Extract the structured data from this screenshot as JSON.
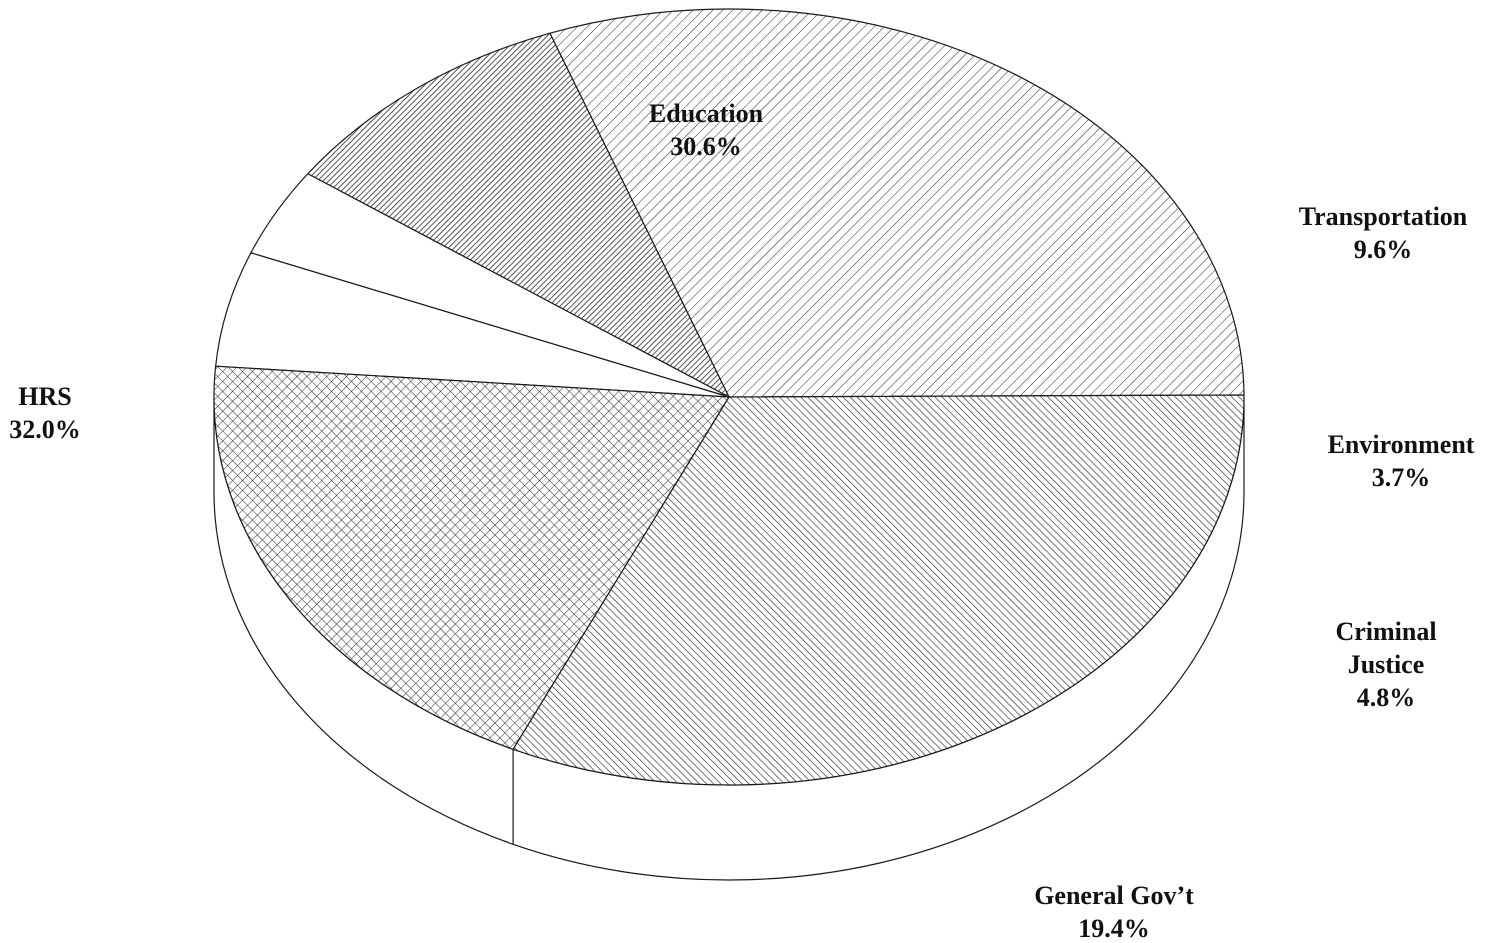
{
  "chart_data": {
    "type": "pie",
    "style": "3d",
    "title": "",
    "slices": [
      {
        "label": "Education",
        "value": 30.6,
        "value_label": "30.6%",
        "pattern": "hatch-forward-light"
      },
      {
        "label": "Transportation",
        "value": 9.6,
        "value_label": "9.6%",
        "pattern": "hatch-forward-dense"
      },
      {
        "label": "Environment",
        "value": 3.7,
        "value_label": "3.7%",
        "pattern": "solid-white"
      },
      {
        "label": "Criminal Justice",
        "label_lines": [
          "Criminal",
          "Justice"
        ],
        "value": 4.8,
        "value_label": "4.8%",
        "pattern": "solid-white"
      },
      {
        "label": "General Gov't",
        "label_lines": [
          "General Gov’t"
        ],
        "value": 19.4,
        "value_label": "19.4%",
        "pattern": "crosshatch"
      },
      {
        "label": "HRS",
        "value": 32.0,
        "value_label": "32.0%",
        "pattern": "hatch-backward"
      }
    ],
    "legend": "none",
    "colors": {
      "stroke": "#1a1a1a",
      "fill": "#ffffff",
      "ink": "#2a2a2a"
    }
  }
}
